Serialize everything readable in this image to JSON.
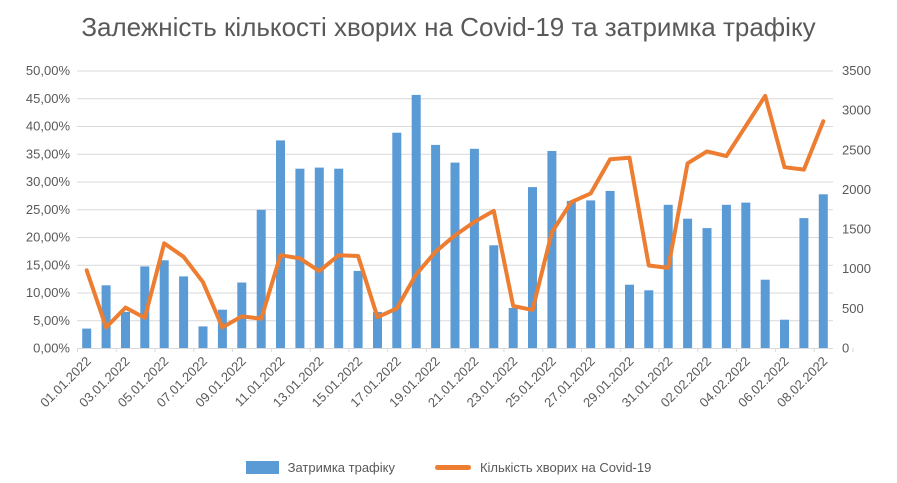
{
  "header": {
    "title": "Залежність кількості хворих на Covid-19 та затримка трафіку"
  },
  "chart_data": {
    "type": "bar",
    "subtype": "combo-bar-line-two-axes",
    "title": "Залежність кількості хворих на Covid-19 та затримка трафіку",
    "categories": [
      "01.01.2022",
      "02.01.2022",
      "03.01.2022",
      "04.01.2022",
      "05.01.2022",
      "06.01.2022",
      "07.01.2022",
      "08.01.2022",
      "09.01.2022",
      "10.01.2022",
      "11.01.2022",
      "12.01.2022",
      "13.01.2022",
      "14.01.2022",
      "15.01.2022",
      "16.01.2022",
      "17.01.2022",
      "18.01.2022",
      "19.01.2022",
      "20.01.2022",
      "21.01.2022",
      "22.01.2022",
      "23.01.2022",
      "24.01.2022",
      "25.01.2022",
      "26.01.2022",
      "27.01.2022",
      "28.01.2022",
      "29.01.2022",
      "30.01.2022",
      "31.01.2022",
      "01.02.2022",
      "02.02.2022",
      "03.02.2022",
      "04.02.2022",
      "05.02.2022",
      "06.02.2022",
      "07.02.2022",
      "08.02.2022"
    ],
    "x_tick_labels": [
      "01.01.2022",
      "03.01.2022",
      "05.01.2022",
      "07.01.2022",
      "09.01.2022",
      "11.01.2022",
      "13.01.2022",
      "15.01.2022",
      "17.01.2022",
      "19.01.2022",
      "21.01.2022",
      "23.01.2022",
      "25.01.2022",
      "27.01.2022",
      "29.01.2022",
      "31.01.2022",
      "02.02.2022",
      "04.02.2022",
      "06.02.2022",
      "08.02.2022"
    ],
    "series": [
      {
        "name": "Затримка трафіку",
        "type": "bar",
        "axis": "left",
        "unit": "percent",
        "color": "#5B9BD5",
        "values": [
          3.5,
          11.3,
          6.5,
          14.7,
          15.8,
          12.9,
          3.9,
          6.9,
          11.8,
          24.9,
          37.4,
          32.3,
          32.5,
          32.3,
          13.9,
          6.5,
          38.8,
          45.6,
          36.6,
          33.4,
          35.9,
          18.5,
          7.2,
          29.0,
          35.5,
          26.5,
          26.6,
          28.3,
          11.4,
          10.4,
          25.8,
          23.3,
          21.6,
          25.8,
          26.2,
          12.3,
          5.1,
          23.4,
          27.7
        ]
      },
      {
        "name": "Кількість хворих на Covid-19",
        "type": "line",
        "axis": "right",
        "unit": "count",
        "color": "#ED7D31",
        "values": [
          980,
          260,
          510,
          380,
          1320,
          1150,
          830,
          260,
          400,
          370,
          1170,
          1130,
          970,
          1170,
          1160,
          390,
          500,
          930,
          1215,
          1420,
          1590,
          1730,
          530,
          480,
          1460,
          1840,
          1950,
          2380,
          2400,
          1040,
          1010,
          2330,
          2480,
          2420,
          2800,
          3180,
          2280,
          2250,
          2860
        ]
      }
    ],
    "left_axis": {
      "min": 0,
      "max": 50,
      "step": 5,
      "tick_labels": [
        "0,00%",
        "5,00%",
        "10,00%",
        "15,00%",
        "20,00%",
        "25,00%",
        "30,00%",
        "35,00%",
        "40,00%",
        "45,00%",
        "50,00%"
      ]
    },
    "right_axis": {
      "min": 0,
      "max": 3500,
      "step": 500,
      "tick_labels": [
        "0",
        "500",
        "1000",
        "1500",
        "2000",
        "2500",
        "3000",
        "3500"
      ]
    },
    "grid": "horizontal",
    "legend_position": "bottom",
    "colors": {
      "bar": "#5B9BD5",
      "line": "#ED7D31",
      "gridline": "#D9D9D9",
      "axis_text": "#595959",
      "title_text": "#595959"
    }
  }
}
